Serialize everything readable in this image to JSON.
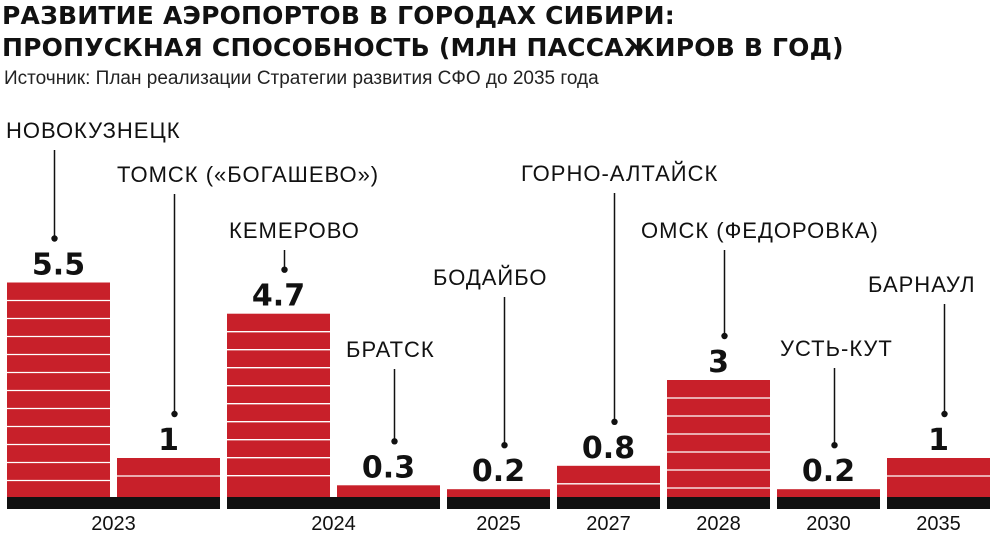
{
  "header": {
    "title_line1": "РАЗВИТИЕ АЭРОПОРТОВ В ГОРОДАХ СИБИРИ:",
    "title_line2": "ПРОПУСКНАЯ СПОСОБНОСТЬ (МЛН ПАССАЖИРОВ В ГОД)",
    "source": "Источник: План реализации Стратегии развития СФО до 2035 года"
  },
  "colors": {
    "bar": "#c8202a",
    "stripe": "#ffffff",
    "axis": "#111111",
    "text": "#111111"
  },
  "chart_data": {
    "type": "bar",
    "title": "РАЗВИТИЕ АЭРОПОРТОВ В ГОРОДАХ СИБИРИ: ПРОПУСКНАЯ СПОСОБНОСТЬ (МЛН ПАССАЖИРОВ В ГОД)",
    "xlabel": "",
    "ylabel": "",
    "ylim": [
      0,
      6
    ],
    "grid": false,
    "legend": "none",
    "years": [
      "2023",
      "2024",
      "2025",
      "2027",
      "2028",
      "2030",
      "2035"
    ],
    "bars": [
      {
        "category": "НОВОКУЗНЕЦК",
        "value": 5.5,
        "label": "5.5",
        "year": "2023"
      },
      {
        "category": "ТОМСК («БОГАШЕВО»)",
        "value": 1,
        "label": "1",
        "year": "2023"
      },
      {
        "category": "КЕМЕРОВО",
        "value": 4.7,
        "label": "4.7",
        "year": "2024"
      },
      {
        "category": "БРАТСК",
        "value": 0.3,
        "label": "0.3",
        "year": "2024"
      },
      {
        "category": "БОДАЙБО",
        "value": 0.2,
        "label": "0.2",
        "year": "2025"
      },
      {
        "category": "ГОРНО-АЛТАЙСК",
        "value": 0.8,
        "label": "0.8",
        "year": "2027"
      },
      {
        "category": "ОМСК (ФЕДОРОВКА)",
        "value": 3,
        "label": "3",
        "year": "2028"
      },
      {
        "category": "УСТЬ-КУТ",
        "value": 0.2,
        "label": "0.2",
        "year": "2030"
      },
      {
        "category": "БАРНАУЛ",
        "value": 1,
        "label": "1",
        "year": "2035"
      }
    ]
  }
}
